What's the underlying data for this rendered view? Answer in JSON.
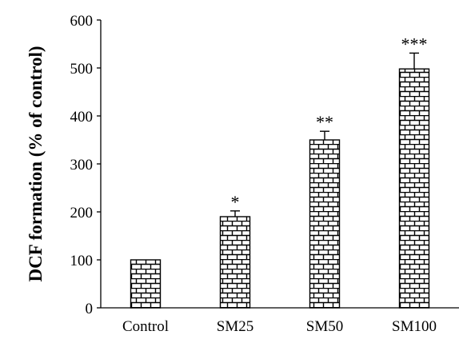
{
  "chart_data": {
    "type": "bar",
    "categories": [
      "Control",
      "SM25",
      "SM50",
      "SM100"
    ],
    "values": [
      100,
      190,
      350,
      498
    ],
    "errors": [
      0,
      12,
      18,
      33
    ],
    "significance": [
      "",
      "*",
      "**",
      "***"
    ],
    "title": "",
    "xlabel": "",
    "ylabel": "DCF formation (% of control)",
    "ylim": [
      0,
      600
    ],
    "yticks": [
      0,
      100,
      200,
      300,
      400,
      500,
      600
    ],
    "grid": false,
    "legend": "none",
    "bar_pattern": "brick",
    "bar_color": "#000000",
    "bar_fill": "#ffffff"
  }
}
